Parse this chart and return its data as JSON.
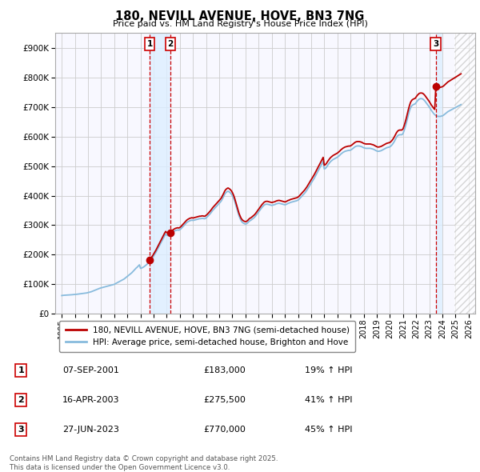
{
  "title": "180, NEVILL AVENUE, HOVE, BN3 7NG",
  "subtitle": "Price paid vs. HM Land Registry's House Price Index (HPI)",
  "xlim": [
    1994.5,
    2026.5
  ],
  "ylim": [
    0,
    950000
  ],
  "yticks": [
    0,
    100000,
    200000,
    300000,
    400000,
    500000,
    600000,
    700000,
    800000,
    900000
  ],
  "xticks": [
    1995,
    1996,
    1997,
    1998,
    1999,
    2000,
    2001,
    2002,
    2003,
    2004,
    2005,
    2006,
    2007,
    2008,
    2009,
    2010,
    2011,
    2012,
    2013,
    2014,
    2015,
    2016,
    2017,
    2018,
    2019,
    2020,
    2021,
    2022,
    2023,
    2024,
    2025,
    2026
  ],
  "property_color": "#bb0000",
  "hpi_color": "#88bbdd",
  "transaction_color": "#cc0000",
  "shade_color": "#ddeeff",
  "hatch_color": "#bbbbbb",
  "grid_color": "#cccccc",
  "footnote": "Contains HM Land Registry data © Crown copyright and database right 2025.\nThis data is licensed under the Open Government Licence v3.0.",
  "legend_property": "180, NEVILL AVENUE, HOVE, BN3 7NG (semi-detached house)",
  "legend_hpi": "HPI: Average price, semi-detached house, Brighton and Hove",
  "transactions": [
    {
      "num": 1,
      "date": "07-SEP-2001",
      "price": 183000,
      "pct": "19%",
      "dir": "↑",
      "year": 2001.69
    },
    {
      "num": 2,
      "date": "16-APR-2003",
      "price": 275500,
      "pct": "41%",
      "dir": "↑",
      "year": 2003.29
    },
    {
      "num": 3,
      "date": "27-JUN-2023",
      "price": 770000,
      "pct": "45%",
      "dir": "↑",
      "year": 2023.49
    }
  ],
  "hpi_months": [
    1995.0,
    1995.083,
    1995.167,
    1995.25,
    1995.333,
    1995.417,
    1995.5,
    1995.583,
    1995.667,
    1995.75,
    1995.833,
    1995.917,
    1996.0,
    1996.083,
    1996.167,
    1996.25,
    1996.333,
    1996.417,
    1996.5,
    1996.583,
    1996.667,
    1996.75,
    1996.833,
    1996.917,
    1997.0,
    1997.083,
    1997.167,
    1997.25,
    1997.333,
    1997.417,
    1997.5,
    1997.583,
    1997.667,
    1997.75,
    1997.833,
    1997.917,
    1998.0,
    1998.083,
    1998.167,
    1998.25,
    1998.333,
    1998.417,
    1998.5,
    1998.583,
    1998.667,
    1998.75,
    1998.833,
    1998.917,
    1999.0,
    1999.083,
    1999.167,
    1999.25,
    1999.333,
    1999.417,
    1999.5,
    1999.583,
    1999.667,
    1999.75,
    1999.833,
    1999.917,
    2000.0,
    2000.083,
    2000.167,
    2000.25,
    2000.333,
    2000.417,
    2000.5,
    2000.583,
    2000.667,
    2000.75,
    2000.833,
    2000.917,
    2001.0,
    2001.083,
    2001.167,
    2001.25,
    2001.333,
    2001.417,
    2001.5,
    2001.583,
    2001.667,
    2001.75,
    2001.833,
    2001.917,
    2002.0,
    2002.083,
    2002.167,
    2002.25,
    2002.333,
    2002.417,
    2002.5,
    2002.583,
    2002.667,
    2002.75,
    2002.833,
    2002.917,
    2003.0,
    2003.083,
    2003.167,
    2003.25,
    2003.333,
    2003.417,
    2003.5,
    2003.583,
    2003.667,
    2003.75,
    2003.833,
    2003.917,
    2004.0,
    2004.083,
    2004.167,
    2004.25,
    2004.333,
    2004.417,
    2004.5,
    2004.583,
    2004.667,
    2004.75,
    2004.833,
    2004.917,
    2005.0,
    2005.083,
    2005.167,
    2005.25,
    2005.333,
    2005.417,
    2005.5,
    2005.583,
    2005.667,
    2005.75,
    2005.833,
    2005.917,
    2006.0,
    2006.083,
    2006.167,
    2006.25,
    2006.333,
    2006.417,
    2006.5,
    2006.583,
    2006.667,
    2006.75,
    2006.833,
    2006.917,
    2007.0,
    2007.083,
    2007.167,
    2007.25,
    2007.333,
    2007.417,
    2007.5,
    2007.583,
    2007.667,
    2007.75,
    2007.833,
    2007.917,
    2008.0,
    2008.083,
    2008.167,
    2008.25,
    2008.333,
    2008.417,
    2008.5,
    2008.583,
    2008.667,
    2008.75,
    2008.833,
    2008.917,
    2009.0,
    2009.083,
    2009.167,
    2009.25,
    2009.333,
    2009.417,
    2009.5,
    2009.583,
    2009.667,
    2009.75,
    2009.833,
    2009.917,
    2010.0,
    2010.083,
    2010.167,
    2010.25,
    2010.333,
    2010.417,
    2010.5,
    2010.583,
    2010.667,
    2010.75,
    2010.833,
    2010.917,
    2011.0,
    2011.083,
    2011.167,
    2011.25,
    2011.333,
    2011.417,
    2011.5,
    2011.583,
    2011.667,
    2011.75,
    2011.833,
    2011.917,
    2012.0,
    2012.083,
    2012.167,
    2012.25,
    2012.333,
    2012.417,
    2012.5,
    2012.583,
    2012.667,
    2012.75,
    2012.833,
    2012.917,
    2013.0,
    2013.083,
    2013.167,
    2013.25,
    2013.333,
    2013.417,
    2013.5,
    2013.583,
    2013.667,
    2013.75,
    2013.833,
    2013.917,
    2014.0,
    2014.083,
    2014.167,
    2014.25,
    2014.333,
    2014.417,
    2014.5,
    2014.583,
    2014.667,
    2014.75,
    2014.833,
    2014.917,
    2015.0,
    2015.083,
    2015.167,
    2015.25,
    2015.333,
    2015.417,
    2015.5,
    2015.583,
    2015.667,
    2015.75,
    2015.833,
    2015.917,
    2016.0,
    2016.083,
    2016.167,
    2016.25,
    2016.333,
    2016.417,
    2016.5,
    2016.583,
    2016.667,
    2016.75,
    2016.833,
    2016.917,
    2017.0,
    2017.083,
    2017.167,
    2017.25,
    2017.333,
    2017.417,
    2017.5,
    2017.583,
    2017.667,
    2017.75,
    2017.833,
    2017.917,
    2018.0,
    2018.083,
    2018.167,
    2018.25,
    2018.333,
    2018.417,
    2018.5,
    2018.583,
    2018.667,
    2018.75,
    2018.833,
    2018.917,
    2019.0,
    2019.083,
    2019.167,
    2019.25,
    2019.333,
    2019.417,
    2019.5,
    2019.583,
    2019.667,
    2019.75,
    2019.833,
    2019.917,
    2020.0,
    2020.083,
    2020.167,
    2020.25,
    2020.333,
    2020.417,
    2020.5,
    2020.583,
    2020.667,
    2020.75,
    2020.833,
    2020.917,
    2021.0,
    2021.083,
    2021.167,
    2021.25,
    2021.333,
    2021.417,
    2021.5,
    2021.583,
    2021.667,
    2021.75,
    2021.833,
    2021.917,
    2022.0,
    2022.083,
    2022.167,
    2022.25,
    2022.333,
    2022.417,
    2022.5,
    2022.583,
    2022.667,
    2022.75,
    2022.833,
    2022.917,
    2023.0,
    2023.083,
    2023.167,
    2023.25,
    2023.333,
    2023.417,
    2023.5,
    2023.583,
    2023.667,
    2023.75,
    2023.833,
    2023.917,
    2024.0,
    2024.083,
    2024.167,
    2024.25,
    2024.333,
    2024.417,
    2024.5,
    2024.583,
    2024.667,
    2024.75,
    2024.833,
    2024.917,
    2025.0,
    2025.083,
    2025.167,
    2025.25,
    2025.333,
    2025.417
  ],
  "hpi_vals": [
    62000,
    62500,
    63000,
    63200,
    63500,
    63800,
    64000,
    64200,
    64500,
    64700,
    65000,
    65200,
    65500,
    66000,
    66500,
    67000,
    67500,
    68000,
    68500,
    69000,
    69500,
    70000,
    70500,
    71000,
    72000,
    73000,
    74000,
    75000,
    76500,
    78000,
    79500,
    81000,
    82500,
    84000,
    85500,
    87000,
    88000,
    89000,
    90000,
    91000,
    92000,
    93000,
    94000,
    95000,
    96000,
    97000,
    98000,
    99000,
    100000,
    102000,
    104000,
    106000,
    108000,
    110000,
    112000,
    114000,
    116000,
    118000,
    121000,
    124000,
    127000,
    130000,
    133000,
    136000,
    139000,
    143000,
    147000,
    151000,
    155000,
    158000,
    162000,
    166000,
    154000,
    155000,
    157000,
    159000,
    162000,
    165000,
    168000,
    172000,
    176000,
    180000,
    185000,
    190000,
    196000,
    202000,
    208000,
    215000,
    222000,
    229000,
    236000,
    243000,
    250000,
    257000,
    264000,
    270000,
    266000,
    265000,
    265000,
    267000,
    270000,
    274000,
    278000,
    280000,
    282000,
    283000,
    284000,
    283000,
    285000,
    288000,
    292000,
    296000,
    300000,
    304000,
    308000,
    311000,
    313000,
    315000,
    316000,
    317000,
    316000,
    317000,
    318000,
    319000,
    320000,
    321000,
    322000,
    322000,
    323000,
    323000,
    322000,
    322000,
    325000,
    328000,
    332000,
    336000,
    340000,
    345000,
    350000,
    354000,
    358000,
    362000,
    366000,
    370000,
    374000,
    378000,
    383000,
    390000,
    397000,
    405000,
    410000,
    413000,
    415000,
    413000,
    410000,
    406000,
    400000,
    392000,
    382000,
    370000,
    357000,
    344000,
    332000,
    323000,
    315000,
    310000,
    307000,
    305000,
    304000,
    305000,
    308000,
    312000,
    315000,
    317000,
    320000,
    323000,
    326000,
    330000,
    335000,
    340000,
    345000,
    350000,
    355000,
    360000,
    364000,
    368000,
    370000,
    371000,
    371000,
    370000,
    369000,
    368000,
    367000,
    368000,
    369000,
    370000,
    372000,
    373000,
    374000,
    374000,
    373000,
    372000,
    371000,
    370000,
    369000,
    370000,
    372000,
    374000,
    375000,
    377000,
    378000,
    379000,
    380000,
    381000,
    382000,
    383000,
    385000,
    388000,
    392000,
    396000,
    400000,
    404000,
    408000,
    413000,
    418000,
    424000,
    430000,
    436000,
    442000,
    448000,
    454000,
    460000,
    467000,
    474000,
    481000,
    488000,
    495000,
    502000,
    509000,
    516000,
    490000,
    492000,
    496000,
    502000,
    507000,
    512000,
    516000,
    519000,
    522000,
    524000,
    526000,
    528000,
    530000,
    533000,
    536000,
    540000,
    543000,
    546000,
    548000,
    550000,
    551000,
    552000,
    553000,
    553000,
    554000,
    556000,
    559000,
    562000,
    565000,
    567000,
    568000,
    568000,
    568000,
    567000,
    566000,
    564000,
    562000,
    561000,
    560000,
    560000,
    560000,
    560000,
    560000,
    559000,
    558000,
    557000,
    555000,
    553000,
    551000,
    550000,
    550000,
    551000,
    552000,
    554000,
    556000,
    558000,
    560000,
    562000,
    563000,
    564000,
    565000,
    568000,
    572000,
    577000,
    583000,
    590000,
    597000,
    602000,
    605000,
    606000,
    606000,
    606000,
    610000,
    620000,
    632000,
    645000,
    660000,
    675000,
    688000,
    698000,
    704000,
    707000,
    709000,
    710000,
    715000,
    720000,
    724000,
    727000,
    728000,
    728000,
    727000,
    724000,
    720000,
    715000,
    710000,
    705000,
    700000,
    694000,
    688000,
    683000,
    678000,
    674000,
    671000,
    669000,
    668000,
    668000,
    668000,
    669000,
    670000,
    672000,
    675000,
    678000,
    681000,
    684000,
    686000,
    688000,
    690000,
    692000,
    694000,
    696000,
    698000,
    700000,
    702000,
    704000,
    706000,
    708000
  ],
  "dot_marker_size": 6,
  "bg_color": "#f8f8ff",
  "hatch_start": 2024.917
}
